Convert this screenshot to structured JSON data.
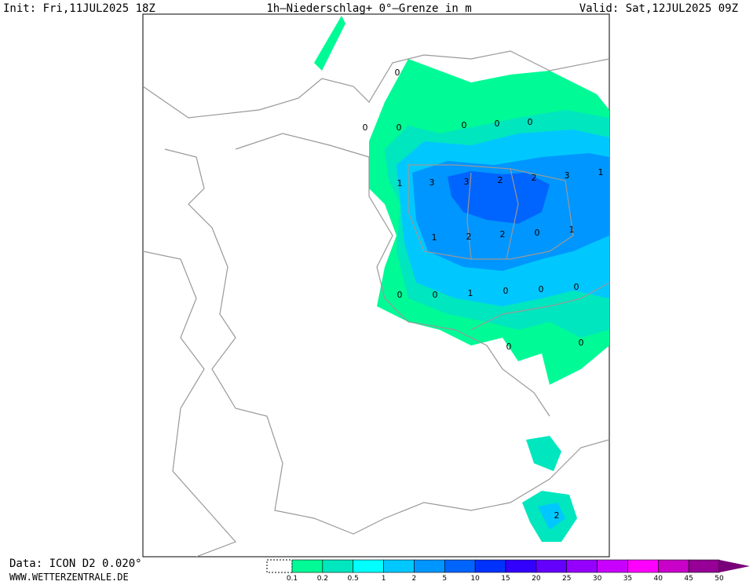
{
  "header": {
    "init": "Init: Fri,11JUL2025 18Z",
    "title": "1h—Niederschlag+ 0°—Grenze in m",
    "valid": "Valid: Sat,12JUL2025 09Z"
  },
  "footer": {
    "data": "Data: ICON D2 0.020°",
    "site": "WWW.WETTERZENTRALE.DE"
  },
  "legend": {
    "labels": [
      "0.1",
      "0.2",
      "0.5",
      "1",
      "2",
      "5",
      "10",
      "15",
      "20",
      "25",
      "30",
      "35",
      "40",
      "45",
      "50"
    ],
    "colors": [
      "#00fa96",
      "#00e6be",
      "#00ffff",
      "#00c8ff",
      "#0096ff",
      "#0064ff",
      "#0032ff",
      "#3200ff",
      "#6400ff",
      "#9600ff",
      "#c800ff",
      "#ff00ff",
      "#c800c8",
      "#960096",
      "#780078"
    ]
  },
  "map_labels": [
    "0",
    "0",
    "0",
    "0",
    "0",
    "0",
    "1",
    "3",
    "3",
    "2",
    "2",
    "3",
    "1",
    "1",
    "2",
    "2",
    "0",
    "1",
    "0",
    "0",
    "1",
    "0",
    "0",
    "0",
    "0",
    "0",
    "2"
  ]
}
